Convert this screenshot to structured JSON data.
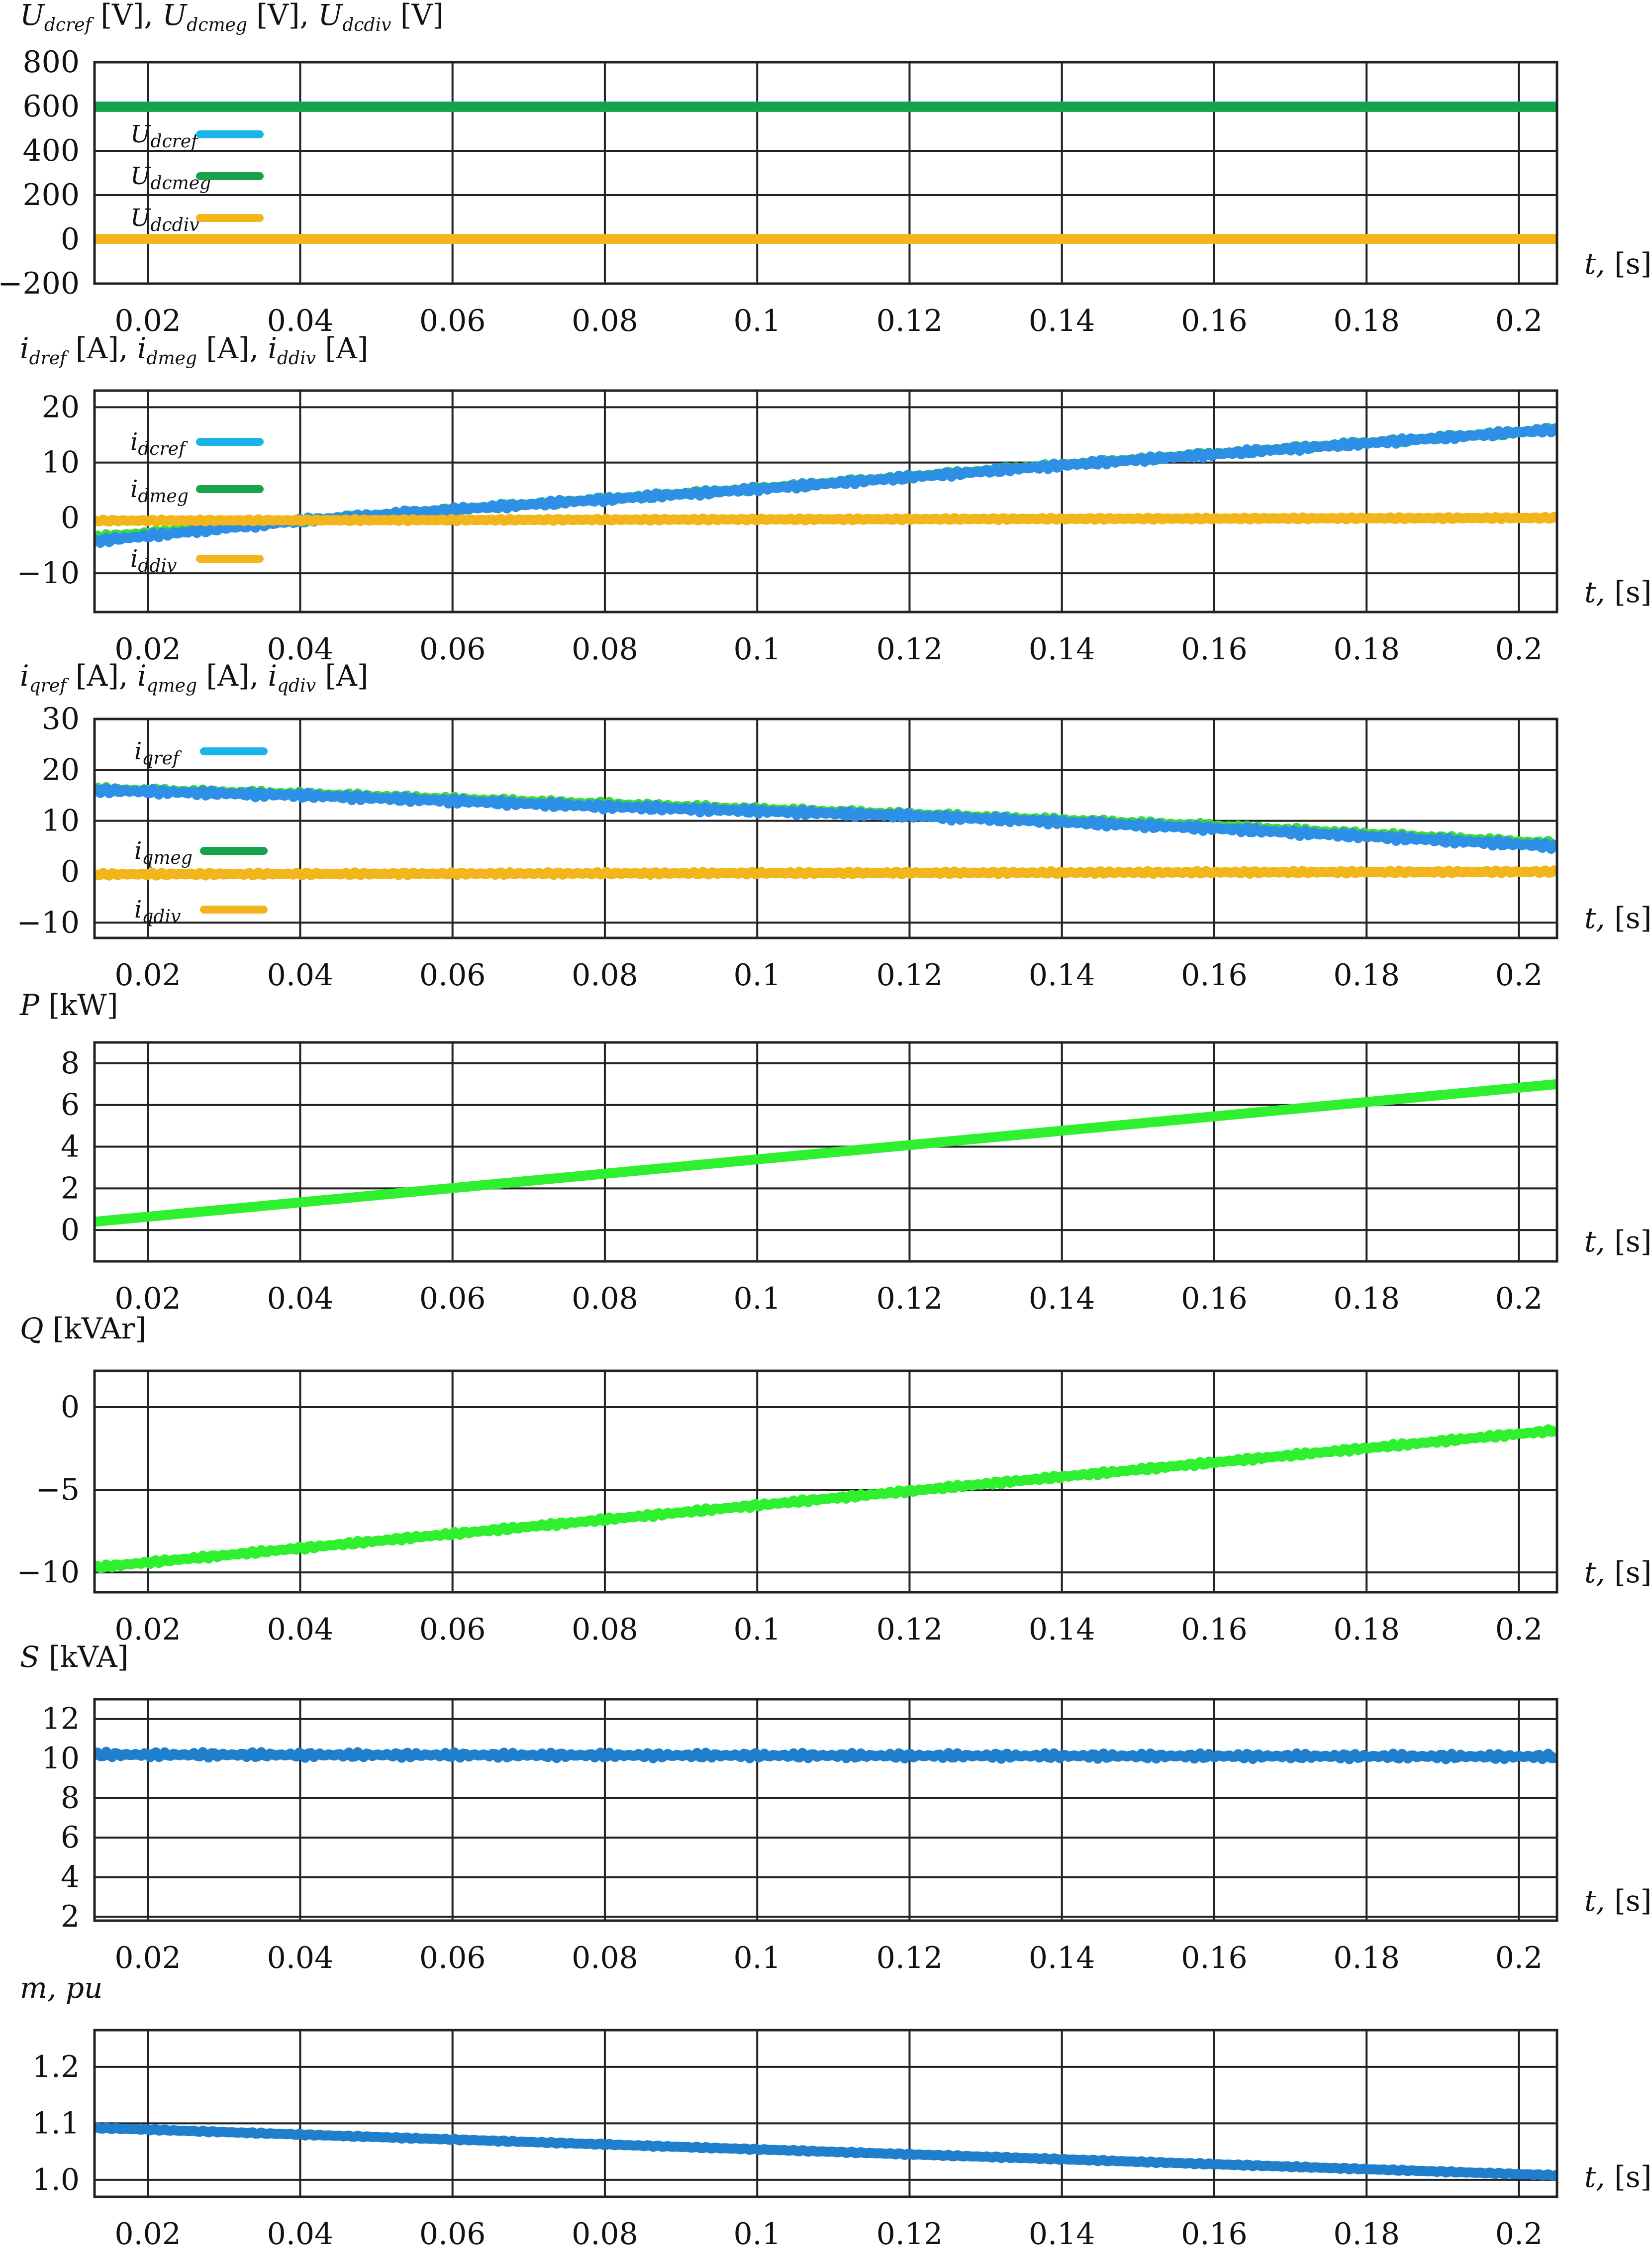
{
  "chart_data": [
    {
      "type": "line",
      "ylabel": "U_dcref [V], U_dcmeg [V], U_dcdiv [V]",
      "ylabel_parts": [
        [
          "U",
          "dcref",
          " [V],"
        ],
        [
          "U",
          "dcmeg",
          " [V],"
        ],
        [
          "U",
          "dcdiv",
          " [V]"
        ]
      ],
      "xlabel": "t, [s]",
      "xlim": [
        0.013,
        0.205
      ],
      "ylim": [
        -200,
        800
      ],
      "yticks": [
        800,
        600,
        400,
        200,
        0,
        -200
      ],
      "ytick_labels": [
        "800",
        "600",
        "400",
        "200",
        "0",
        "−200"
      ],
      "xticks": [
        0.02,
        0.04,
        0.06,
        0.08,
        0.1,
        0.12,
        0.14,
        0.16,
        0.18,
        0.2
      ],
      "xtick_labels": [
        "0.02",
        "0.04",
        "0.06",
        "0.08",
        "0.1",
        "0.12",
        "0.14",
        "0.16",
        "0.18",
        "0.2"
      ],
      "grid": true,
      "legend": "left",
      "series": [
        {
          "name": "U_dcref",
          "name_base": "U",
          "name_sub": "dcref",
          "color": "#19b4e8",
          "x": [
            0.013,
            0.205
          ],
          "values": [
            600,
            600
          ],
          "ripple": 0
        },
        {
          "name": "U_dcmeg",
          "name_base": "U",
          "name_sub": "dcmeg",
          "color": "#16a34a",
          "x": [
            0.013,
            0.205
          ],
          "values": [
            598,
            598
          ],
          "ripple": 0
        },
        {
          "name": "U_dcdiv",
          "name_base": "U",
          "name_sub": "dcdiv",
          "color": "#f2b51b",
          "x": [
            0.013,
            0.205
          ],
          "values": [
            2,
            2
          ],
          "ripple": 0
        }
      ]
    },
    {
      "type": "line",
      "ylabel": "i_dref [A], i_dmeg [A], i_ddiv [A]",
      "ylabel_parts": [
        [
          "i",
          "dref",
          " [A],"
        ],
        [
          "i",
          "dmeg",
          " [A],"
        ],
        [
          "i",
          "ddiv",
          " [A]"
        ]
      ],
      "xlabel": "t, [s]",
      "xlim": [
        0.013,
        0.205
      ],
      "ylim": [
        -17,
        23
      ],
      "yticks": [
        20,
        10,
        0,
        -10
      ],
      "ytick_labels": [
        "20",
        "10",
        "0",
        "−10"
      ],
      "xticks": [
        0.02,
        0.04,
        0.06,
        0.08,
        0.1,
        0.12,
        0.14,
        0.16,
        0.18,
        0.2
      ],
      "xtick_labels": [
        "0.02",
        "0.04",
        "0.06",
        "0.08",
        "0.1",
        "0.12",
        "0.14",
        "0.16",
        "0.18",
        "0.2"
      ],
      "grid": true,
      "legend": "left",
      "series": [
        {
          "name": "i_dmeg",
          "name_base": "i",
          "name_sub": "dmeg",
          "color": "#3dd93d",
          "x": [
            0.013,
            0.04,
            0.06,
            0.1,
            0.14,
            0.205
          ],
          "values": [
            -3.5,
            -0.5,
            1.5,
            5.3,
            9.6,
            16.0
          ],
          "ripple": 0.4
        },
        {
          "name": "i_dcref",
          "name_base": "i",
          "name_sub": "dcref",
          "color": "#2e8fe6",
          "x": [
            0.013,
            0.04,
            0.06,
            0.1,
            0.14,
            0.205
          ],
          "values": [
            -4.2,
            -0.5,
            1.5,
            5.2,
            9.5,
            16.0
          ],
          "ripple": 0.5
        },
        {
          "name": "i_ddiv",
          "name_base": "i",
          "name_sub": "ddiv",
          "color": "#f2b51b",
          "x": [
            0.013,
            0.205
          ],
          "values": [
            -0.5,
            0
          ],
          "ripple": 0.2
        }
      ],
      "legend_entries": [
        {
          "name_base": "i",
          "name_sub": "dcref",
          "color": "#19b4e8"
        },
        {
          "name_base": "i",
          "name_sub": "dmeg",
          "color": "#16a34a"
        },
        {
          "name_base": "i",
          "name_sub": "ddiv",
          "color": "#f2b51b"
        }
      ]
    },
    {
      "type": "line",
      "ylabel": "i_qref [A], i_qmeg [A], i_qdiv [A]",
      "ylabel_parts": [
        [
          "i",
          "qref",
          " [A],"
        ],
        [
          "i",
          "qmeg",
          " [A],"
        ],
        [
          "i",
          "qdiv",
          " [A]"
        ]
      ],
      "xlabel": "t, [s]",
      "xlim": [
        0.013,
        0.205
      ],
      "ylim": [
        -13,
        30
      ],
      "yticks": [
        30,
        20,
        10,
        0,
        -10
      ],
      "ytick_labels": [
        "30",
        "20",
        "10",
        "0",
        "−10"
      ],
      "xticks": [
        0.02,
        0.04,
        0.06,
        0.08,
        0.1,
        0.12,
        0.14,
        0.16,
        0.18,
        0.2
      ],
      "xtick_labels": [
        "0.02",
        "0.04",
        "0.06",
        "0.08",
        "0.1",
        "0.12",
        "0.14",
        "0.16",
        "0.18",
        "0.2"
      ],
      "grid": true,
      "legend": "left",
      "series": [
        {
          "name": "i_qmeg",
          "name_base": "i",
          "name_sub": "qmeg",
          "color": "#3dd93d",
          "x": [
            0.013,
            0.04,
            0.08,
            0.12,
            0.16,
            0.205
          ],
          "values": [
            16.2,
            15.3,
            13.3,
            11.3,
            9.0,
            5.5
          ],
          "ripple": 0.5
        },
        {
          "name": "i_qref",
          "name_base": "i",
          "name_sub": "qref",
          "color": "#2e8fe6",
          "x": [
            0.013,
            0.04,
            0.08,
            0.12,
            0.16,
            0.205
          ],
          "values": [
            16.0,
            15.0,
            12.8,
            11.0,
            8.5,
            5.0
          ],
          "ripple": 0.6
        },
        {
          "name": "i_qdiv",
          "name_base": "i",
          "name_sub": "qdiv",
          "color": "#f2b51b",
          "x": [
            0.013,
            0.205
          ],
          "values": [
            -0.5,
            0
          ],
          "ripple": 0.3
        }
      ],
      "legend_entries": [
        {
          "name_base": "i",
          "name_sub": "qref",
          "color": "#19b4e8"
        },
        {
          "name_base": "i",
          "name_sub": "qmeg",
          "color": "#16a34a"
        },
        {
          "name_base": "i",
          "name_sub": "qdiv",
          "color": "#f2b51b"
        }
      ]
    },
    {
      "type": "line",
      "ylabel": "P [kW]",
      "ylabel_parts": [
        [
          "P",
          "",
          ""
        ],
        [
          "",
          "",
          " [kW]"
        ]
      ],
      "xlabel": "t, [s]",
      "xlim": [
        0.013,
        0.205
      ],
      "ylim": [
        -1.5,
        9.0
      ],
      "yticks": [
        8,
        6,
        4,
        2,
        0
      ],
      "ytick_labels": [
        "8",
        "6",
        "4",
        "2",
        "0"
      ],
      "xticks": [
        0.02,
        0.04,
        0.06,
        0.08,
        0.1,
        0.12,
        0.14,
        0.16,
        0.18,
        0.2
      ],
      "xtick_labels": [
        "0.02",
        "0.04",
        "0.06",
        "0.08",
        "0.1",
        "0.12",
        "0.14",
        "0.16",
        "0.18",
        "0.2"
      ],
      "grid": true,
      "series": [
        {
          "color": "#2ef02e",
          "x": [
            0.013,
            0.205
          ],
          "values": [
            0.4,
            7.0
          ],
          "ripple": 0
        }
      ]
    },
    {
      "type": "line",
      "ylabel": "Q [kVAr]",
      "ylabel_parts": [
        [
          "Q",
          "",
          ""
        ],
        [
          "",
          "",
          " [kVAr]"
        ]
      ],
      "xlabel": "t, [s]",
      "xlim": [
        0.013,
        0.205
      ],
      "ylim": [
        -11.2,
        2.2
      ],
      "yticks": [
        0,
        -5,
        -10
      ],
      "ytick_labels": [
        "0",
        "−5",
        "−10"
      ],
      "xticks": [
        0.02,
        0.04,
        0.06,
        0.08,
        0.1,
        0.12,
        0.14,
        0.16,
        0.18,
        0.2
      ],
      "xtick_labels": [
        "0.02",
        "0.04",
        "0.06",
        "0.08",
        "0.1",
        "0.12",
        "0.14",
        "0.16",
        "0.18",
        "0.2"
      ],
      "grid": true,
      "series": [
        {
          "color": "#2ef02e",
          "x": [
            0.013,
            0.205
          ],
          "values": [
            -9.7,
            -1.4
          ],
          "ripple": 0.12
        }
      ]
    },
    {
      "type": "line",
      "ylabel": "S [kVA]",
      "ylabel_parts": [
        [
          "S",
          "",
          ""
        ],
        [
          "",
          "",
          " [kVA]"
        ]
      ],
      "xlabel": "t, [s]",
      "xlim": [
        0.013,
        0.205
      ],
      "ylim": [
        1.8,
        13.0
      ],
      "yticks": [
        12,
        10,
        8,
        6,
        4,
        2
      ],
      "ytick_labels": [
        "12",
        "10",
        "8",
        "6",
        "4",
        "2"
      ],
      "xticks": [
        0.02,
        0.04,
        0.06,
        0.08,
        0.1,
        0.12,
        0.14,
        0.16,
        0.18,
        0.2
      ],
      "xtick_labels": [
        "0.02",
        "0.04",
        "0.06",
        "0.08",
        "0.1",
        "0.12",
        "0.14",
        "0.16",
        "0.18",
        "0.2"
      ],
      "grid": true,
      "series": [
        {
          "color": "#1f7fcc",
          "x": [
            0.013,
            0.205
          ],
          "values": [
            10.2,
            10.1
          ],
          "ripple": 0.15
        }
      ]
    },
    {
      "type": "line",
      "ylabel": "m, pu",
      "ylabel_parts": [
        [
          "m, pu",
          "",
          ""
        ]
      ],
      "xlabel": "t, [s]",
      "xlim": [
        0.013,
        0.205
      ],
      "ylim": [
        0.97,
        1.265
      ],
      "yticks": [
        1.2,
        1.1,
        1.0
      ],
      "ytick_labels": [
        "1.2",
        "1.1",
        "1.0"
      ],
      "xticks": [
        0.02,
        0.04,
        0.06,
        0.08,
        0.1,
        0.12,
        0.14,
        0.16,
        0.18,
        0.2
      ],
      "xtick_labels": [
        "0.02",
        "0.04",
        "0.06",
        "0.08",
        "0.1",
        "0.12",
        "0.14",
        "0.16",
        "0.18",
        "0.2"
      ],
      "grid": true,
      "series": [
        {
          "color": "#1f7fcc",
          "x": [
            0.013,
            0.205
          ],
          "values": [
            1.092,
            1.008
          ],
          "ripple": 0.0015
        }
      ]
    }
  ]
}
